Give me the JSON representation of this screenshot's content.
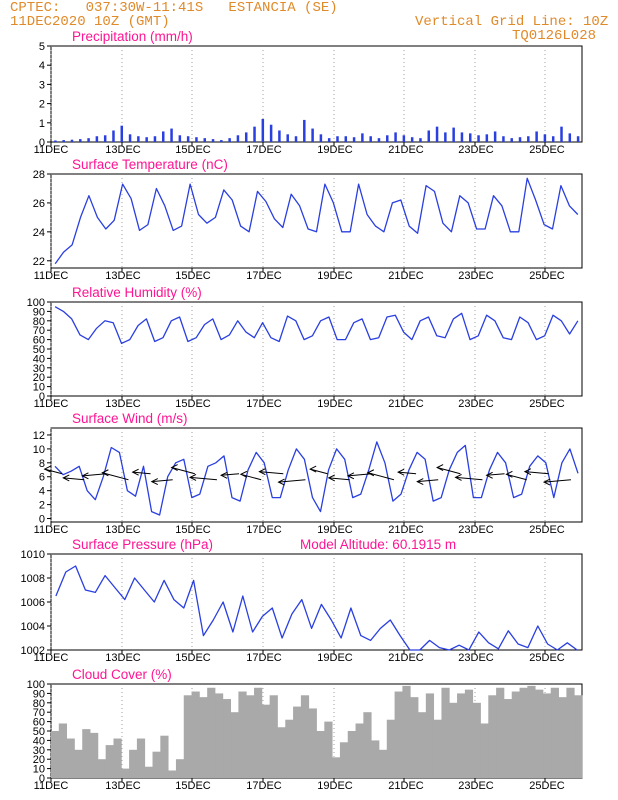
{
  "header": {
    "line1": "CPTEC:   037:30W-11:41S   ESTANCIA (SE)",
    "line2": "11DEC2020 10Z (GMT)",
    "grid_note": "Vertical Grid Line: 10Z",
    "code": "TQ0126L028"
  },
  "colors": {
    "header": "#e08a2a",
    "title": "#ff1493",
    "line": "#2a3fe0",
    "bar": "#2a3fe0",
    "cloud": "#a9a9a9",
    "arrow": "#000000",
    "grid": "#888888"
  },
  "chart_data": [
    {
      "type": "bar",
      "title": "Precipitation (mm/h)",
      "x_ticks": [
        "11DEC",
        "13DEC",
        "15DEC",
        "17DEC",
        "19DEC",
        "21DEC",
        "23DEC",
        "25DEC"
      ],
      "ylim": [
        0,
        5
      ],
      "y_ticks": [
        0,
        1,
        2,
        3,
        4,
        5
      ],
      "series": [
        {
          "name": "precipitation",
          "values": [
            0.08,
            0.1,
            0.12,
            0.15,
            0.2,
            0.3,
            0.35,
            0.6,
            0.85,
            0.4,
            0.3,
            0.25,
            0.3,
            0.55,
            0.7,
            0.35,
            0.3,
            0.25,
            0.2,
            0.15,
            0.1,
            0.2,
            0.35,
            0.5,
            0.8,
            1.2,
            0.9,
            0.6,
            0.4,
            0.3,
            1.15,
            0.7,
            0.4,
            0.2,
            0.3,
            0.3,
            0.25,
            0.45,
            0.3,
            0.2,
            0.35,
            0.5,
            0.35,
            0.25,
            0.2,
            0.6,
            0.8,
            0.5,
            0.75,
            0.5,
            0.45,
            0.35,
            0.4,
            0.55,
            0.3,
            0.2,
            0.25,
            0.3,
            0.55,
            0.4,
            0.3,
            0.8,
            0.45,
            0.3
          ]
        }
      ]
    },
    {
      "type": "line",
      "title": "Surface Temperature (nC)",
      "x_ticks": [
        "11DEC",
        "13DEC",
        "15DEC",
        "17DEC",
        "19DEC",
        "21DEC",
        "23DEC",
        "25DEC"
      ],
      "ylim": [
        21.5,
        28
      ],
      "y_ticks": [
        22,
        24,
        26,
        28
      ],
      "series": [
        {
          "name": "temperature",
          "values": [
            21.8,
            22.6,
            23.1,
            25.0,
            26.5,
            25.0,
            24.2,
            24.8,
            27.3,
            26.3,
            24.1,
            24.5,
            27.0,
            25.8,
            24.1,
            24.4,
            27.3,
            25.2,
            24.6,
            25.0,
            26.9,
            26.2,
            24.4,
            24.0,
            26.8,
            26.1,
            24.9,
            24.3,
            26.6,
            25.8,
            24.2,
            24.0,
            27.3,
            26.0,
            24.0,
            24.0,
            27.3,
            25.2,
            24.4,
            24.0,
            26.0,
            26.2,
            24.4,
            23.9,
            27.2,
            26.8,
            24.6,
            24.0,
            26.5,
            26.0,
            24.2,
            24.2,
            26.5,
            25.8,
            24.0,
            24.0,
            27.7,
            26.2,
            24.5,
            24.2,
            27.2,
            25.8,
            25.2
          ]
        }
      ]
    },
    {
      "type": "line",
      "title": "Relative Humidity (%)",
      "x_ticks": [
        "11DEC",
        "13DEC",
        "15DEC",
        "17DEC",
        "19DEC",
        "21DEC",
        "23DEC",
        "25DEC"
      ],
      "ylim": [
        0,
        100
      ],
      "y_ticks": [
        0,
        10,
        20,
        30,
        40,
        50,
        60,
        70,
        80,
        90,
        100
      ],
      "series": [
        {
          "name": "humidity",
          "values": [
            95,
            90,
            82,
            65,
            60,
            72,
            80,
            78,
            56,
            60,
            75,
            82,
            58,
            62,
            80,
            84,
            58,
            62,
            76,
            82,
            60,
            65,
            80,
            68,
            62,
            78,
            62,
            58,
            85,
            80,
            60,
            64,
            80,
            84,
            60,
            60,
            78,
            82,
            60,
            62,
            84,
            86,
            68,
            60,
            80,
            84,
            64,
            62,
            82,
            88,
            60,
            64,
            86,
            80,
            62,
            60,
            84,
            78,
            60,
            64,
            86,
            80,
            66,
            80
          ]
        }
      ]
    },
    {
      "type": "line",
      "title": "Surface Wind (m/s)",
      "x_ticks": [
        "11DEC",
        "13DEC",
        "15DEC",
        "17DEC",
        "19DEC",
        "21DEC",
        "23DEC",
        "25DEC"
      ],
      "ylim": [
        -0.5,
        13
      ],
      "y_ticks": [
        0,
        2,
        4,
        6,
        8,
        10,
        12
      ],
      "series": [
        {
          "name": "wind speed",
          "values": [
            7.5,
            6.3,
            6.8,
            7.5,
            4.0,
            2.7,
            6.0,
            10.2,
            9.5,
            4.0,
            3.2,
            7.5,
            1.0,
            0.5,
            6.0,
            8.0,
            8.5,
            3.0,
            3.5,
            7.5,
            8.0,
            9.0,
            3.0,
            2.5,
            7.0,
            9.5,
            8.0,
            3.0,
            3.0,
            7.0,
            10.0,
            8.5,
            3.0,
            1.0,
            7.0,
            10.0,
            8.5,
            3.0,
            3.5,
            7.0,
            11.0,
            8.0,
            2.5,
            3.5,
            7.0,
            9.5,
            8.5,
            2.5,
            3.0,
            7.0,
            9.5,
            10.5,
            3.0,
            3.0,
            7.0,
            9.5,
            8.0,
            3.0,
            3.5,
            7.5,
            9.0,
            8.0,
            3.0,
            8.0,
            10.0,
            6.5
          ]
        }
      ],
      "vectors": "wind direction arrows"
    },
    {
      "type": "line",
      "title": "Surface Pressure (hPa)",
      "annotation": "Model Altitude: 60.1915 m",
      "x_ticks": [
        "11DEC",
        "13DEC",
        "15DEC",
        "17DEC",
        "19DEC",
        "21DEC",
        "23DEC",
        "25DEC"
      ],
      "ylim": [
        1002,
        1010
      ],
      "y_ticks": [
        1002,
        1004,
        1006,
        1008,
        1010
      ],
      "series": [
        {
          "name": "pressure",
          "values": [
            1006.5,
            1008.5,
            1009.0,
            1007.0,
            1006.8,
            1008.2,
            1007.2,
            1006.2,
            1008.0,
            1007.0,
            1006.0,
            1007.8,
            1006.2,
            1005.5,
            1007.8,
            1003.2,
            1004.5,
            1006.0,
            1003.5,
            1006.5,
            1003.5,
            1004.8,
            1005.5,
            1003.0,
            1005.0,
            1006.2,
            1003.8,
            1005.8,
            1004.5,
            1003.0,
            1005.5,
            1003.2,
            1002.8,
            1003.8,
            1004.5,
            1003.2,
            1002.0,
            1002.0,
            1002.8,
            1002.2,
            1002.0,
            1002.4,
            1002.0,
            1003.5,
            1002.6,
            1002.1,
            1003.6,
            1002.5,
            1002.2,
            1004.0,
            1002.5,
            1002.0,
            1002.6,
            1002.0
          ]
        }
      ]
    },
    {
      "type": "bar",
      "title": "Cloud Cover (%)",
      "x_ticks": [
        "11DEC",
        "13DEC",
        "15DEC",
        "17DEC",
        "19DEC",
        "21DEC",
        "23DEC",
        "25DEC"
      ],
      "ylim": [
        0,
        100
      ],
      "y_ticks": [
        0,
        10,
        20,
        30,
        40,
        50,
        60,
        70,
        80,
        90,
        100
      ],
      "series": [
        {
          "name": "cloud cover",
          "values": [
            50,
            58,
            42,
            30,
            52,
            48,
            20,
            35,
            42,
            10,
            30,
            42,
            12,
            28,
            45,
            8,
            20,
            88,
            92,
            86,
            96,
            90,
            84,
            70,
            92,
            88,
            96,
            78,
            88,
            54,
            62,
            76,
            88,
            74,
            50,
            60,
            22,
            38,
            50,
            58,
            70,
            40,
            30,
            62,
            92,
            98,
            86,
            70,
            90,
            62,
            96,
            80,
            90,
            94,
            80,
            58,
            88,
            96,
            84,
            92,
            96,
            98,
            94,
            90,
            96,
            86,
            96,
            88
          ]
        }
      ]
    }
  ]
}
